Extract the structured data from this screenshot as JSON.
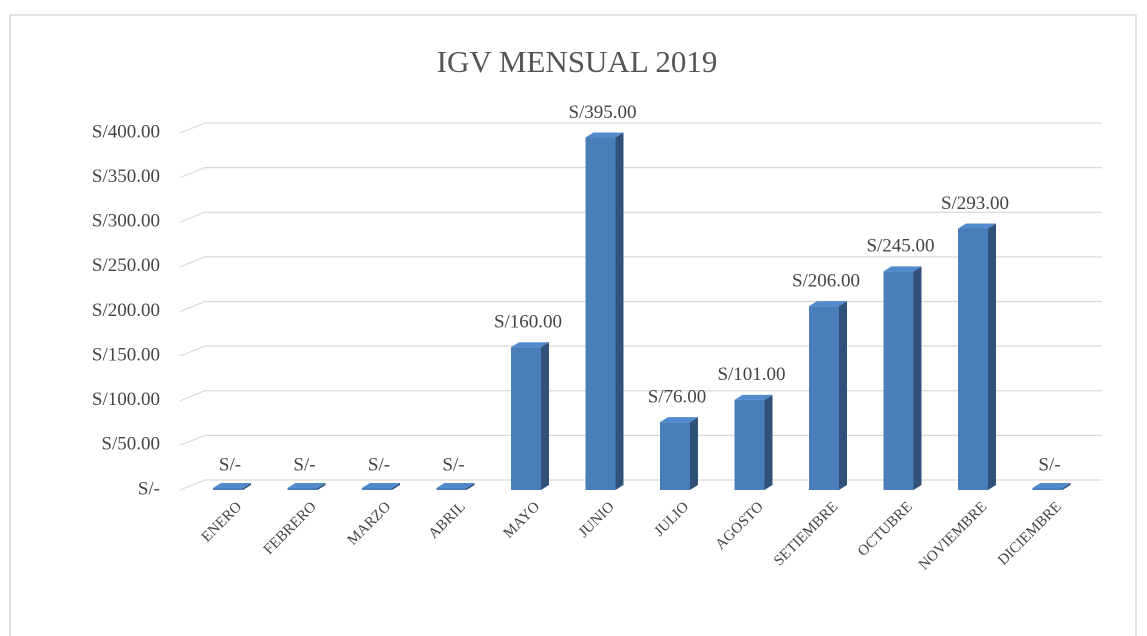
{
  "chart_data": {
    "type": "bar3d",
    "title": "IGV MENSUAL 2019",
    "categories": [
      "ENERO",
      "FEBRERO",
      "MARZO",
      "ABRIL",
      "MAYO",
      "JUNIO",
      "JULIO",
      "AGOSTO",
      "SETIEMBRE",
      "OCTUBRE",
      "NOVIEMBRE",
      "DICIEMBRE"
    ],
    "values": [
      0,
      0,
      0,
      0,
      160,
      395,
      76,
      101,
      206,
      245,
      293,
      0
    ],
    "value_labels": [
      "S/-",
      "S/-",
      "S/-",
      "S/-",
      "S/160.00",
      "S/395.00",
      "S/76.00",
      "S/101.00",
      "S/206.00",
      "S/245.00",
      "S/293.00",
      "S/-"
    ],
    "color": "#4a7ebb",
    "ylim": [
      0,
      400
    ],
    "yticks": [
      {
        "value": 0,
        "label": "S/-"
      },
      {
        "value": 50,
        "label": "S/50.00"
      },
      {
        "value": 100,
        "label": "S/100.00"
      },
      {
        "value": 150,
        "label": "S/150.00"
      },
      {
        "value": 200,
        "label": "S/200.00"
      },
      {
        "value": 250,
        "label": "S/250.00"
      },
      {
        "value": 300,
        "label": "S/300.00"
      },
      {
        "value": 350,
        "label": "S/350.00"
      },
      {
        "value": 400,
        "label": "S/400.00"
      }
    ],
    "grid": true
  }
}
